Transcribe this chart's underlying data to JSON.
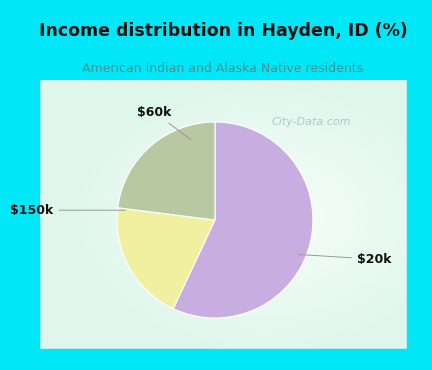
{
  "title": "Income distribution in Hayden, ID (%)",
  "subtitle": "American Indian and Alaska Native residents",
  "slices": [
    {
      "label": "$20k",
      "value": 57,
      "color": "#c8aee0"
    },
    {
      "label": "$60k",
      "value": 20,
      "color": "#f0f0a0"
    },
    {
      "label": "$150k",
      "value": 23,
      "color": "#b8c8a0"
    }
  ],
  "bg_cyan": "#00e8f8",
  "chart_bg_left": "#c8eee0",
  "chart_bg_center": "#f0faf8",
  "title_color": "#111111",
  "subtitle_color": "#4a9090",
  "watermark": "City-Data.com",
  "startangle": 90,
  "label_style": {
    "fontsize": 9,
    "fontweight": "bold",
    "color": "#111111"
  }
}
